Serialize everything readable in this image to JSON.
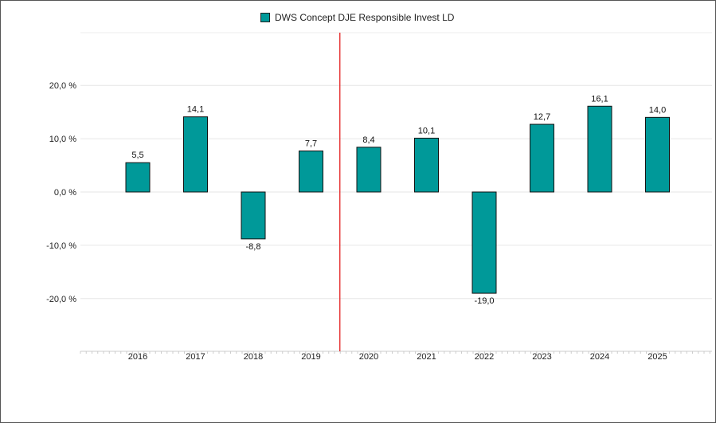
{
  "chart_data": {
    "type": "bar",
    "title": "",
    "xlabel": "",
    "ylabel": "",
    "categories": [
      "2016",
      "2017",
      "2018",
      "2019",
      "2020",
      "2021",
      "2022",
      "2023",
      "2024",
      "2025"
    ],
    "series": [
      {
        "name": "DWS Concept DJE Responsible Invest LD",
        "values": [
          5.5,
          14.1,
          -8.8,
          7.7,
          8.4,
          10.1,
          -19.0,
          12.7,
          16.1,
          14.0
        ],
        "color": "#009999"
      }
    ],
    "value_labels": [
      "5,5",
      "14,1",
      "-8,8",
      "7,7",
      "8,4",
      "10,1",
      "-19,0",
      "12,7",
      "16,1",
      "14,0"
    ],
    "ylim": [
      -30,
      30
    ],
    "yticks": [
      20,
      10,
      0,
      -10,
      -20
    ],
    "ytick_labels": [
      "20,0 %",
      "10,0 %",
      "0,0 %",
      "-10,0 %",
      "-20,0 %"
    ],
    "grid": true,
    "legend_position": "top-center",
    "vertical_marker_between": [
      "2019",
      "2020"
    ],
    "marker_color": "#e41e1e"
  }
}
